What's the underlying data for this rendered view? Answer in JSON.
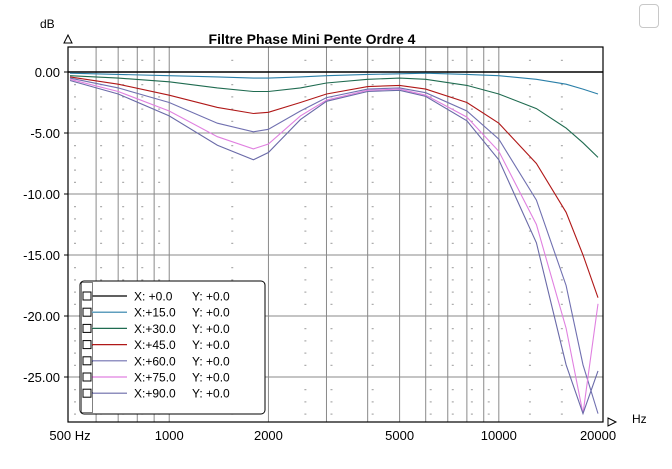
{
  "chart_data": {
    "type": "line",
    "title": "Filtre Phase Mini Pente Ordre 4",
    "xlabel": "Hz",
    "ylabel": "dB",
    "xscale": "log",
    "xlim": [
      500,
      20000
    ],
    "ylim": [
      -28,
      2
    ],
    "x_ticks": [
      {
        "v": 500,
        "label": "500 Hz"
      },
      {
        "v": 1000,
        "label": "1000"
      },
      {
        "v": 2000,
        "label": "2000"
      },
      {
        "v": 5000,
        "label": "5000"
      },
      {
        "v": 10000,
        "label": "10000"
      },
      {
        "v": 20000,
        "label": "20000"
      }
    ],
    "y_ticks": [
      {
        "v": 0,
        "label": "0.00"
      },
      {
        "v": -5,
        "label": "-5.00"
      },
      {
        "v": -10,
        "label": "-10.00"
      },
      {
        "v": -15,
        "label": "-15.00"
      },
      {
        "v": -20,
        "label": "-20.00"
      },
      {
        "v": -25,
        "label": "-25.00"
      }
    ],
    "grid": true,
    "legend_position": "lower-left",
    "x": [
      500,
      700,
      1000,
      1400,
      1800,
      2000,
      2500,
      3000,
      4000,
      5000,
      6000,
      8000,
      10000,
      13000,
      16000,
      18000,
      20000
    ],
    "series": [
      {
        "name": "X: +0.0   Y: +0.0",
        "color": "#000000",
        "values": [
          0,
          0,
          0,
          0,
          0,
          0,
          0,
          0,
          0,
          0,
          0,
          0,
          0,
          0,
          0,
          0,
          0
        ]
      },
      {
        "name": "X:+15.0  Y: +0.0",
        "color": "#2a7fa8",
        "values": [
          -0.1,
          -0.2,
          -0.3,
          -0.4,
          -0.5,
          -0.5,
          -0.4,
          -0.3,
          -0.2,
          -0.15,
          -0.1,
          -0.2,
          -0.3,
          -0.6,
          -1.0,
          -1.4,
          -1.8
        ]
      },
      {
        "name": "X:+30.0  Y: +0.0",
        "color": "#1f6b50",
        "values": [
          -0.3,
          -0.5,
          -0.8,
          -1.3,
          -1.6,
          -1.6,
          -1.3,
          -0.9,
          -0.6,
          -0.5,
          -0.6,
          -1.1,
          -1.8,
          -3.0,
          -4.6,
          -5.8,
          -7.0
        ]
      },
      {
        "name": "X:+45.0  Y: +0.0",
        "color": "#b01818",
        "values": [
          -0.4,
          -1.0,
          -1.9,
          -2.9,
          -3.4,
          -3.3,
          -2.5,
          -1.8,
          -1.2,
          -1.1,
          -1.4,
          -2.5,
          -4.2,
          -7.5,
          -11.5,
          -15.0,
          -18.5
        ]
      },
      {
        "name": "X:+60.0  Y: +0.0",
        "color": "#7070b0",
        "values": [
          -0.5,
          -1.3,
          -2.5,
          -4.2,
          -4.9,
          -4.7,
          -3.2,
          -2.1,
          -1.4,
          -1.3,
          -1.7,
          -3.2,
          -5.5,
          -10.5,
          -17.5,
          -24.0,
          -28.0
        ]
      },
      {
        "name": "X:+75.0  Y: +0.0",
        "color": "#e080e0",
        "values": [
          -0.6,
          -1.6,
          -3.2,
          -5.3,
          -6.3,
          -5.9,
          -3.6,
          -2.3,
          -1.5,
          -1.4,
          -1.9,
          -3.7,
          -6.5,
          -12.5,
          -21.0,
          -28.0,
          -19.0
        ]
      },
      {
        "name": "X:+90.0  Y: +0.0",
        "color": "#6a6aa8",
        "values": [
          -0.7,
          -1.8,
          -3.6,
          -6.0,
          -7.2,
          -6.6,
          -3.9,
          -2.4,
          -1.6,
          -1.5,
          -2.0,
          -4.0,
          -7.2,
          -14.0,
          -24.0,
          -28.0,
          -24.5
        ]
      }
    ]
  },
  "legend": {
    "items": [
      {
        "label": "X:  +0.0",
        "y_label": "Y:  +0.0",
        "color": "#000000"
      },
      {
        "label": "X:+15.0",
        "y_label": "Y:  +0.0",
        "color": "#2a7fa8"
      },
      {
        "label": "X:+30.0",
        "y_label": "Y:  +0.0",
        "color": "#1f6b50"
      },
      {
        "label": "X:+45.0",
        "y_label": "Y:  +0.0",
        "color": "#b01818"
      },
      {
        "label": "X:+60.0",
        "y_label": "Y:  +0.0",
        "color": "#7070b0"
      },
      {
        "label": "X:+75.0",
        "y_label": "Y:  +0.0",
        "color": "#e080e0"
      },
      {
        "label": "X:+90.0",
        "y_label": "Y:  +0.0",
        "color": "#6a6aa8"
      }
    ]
  }
}
